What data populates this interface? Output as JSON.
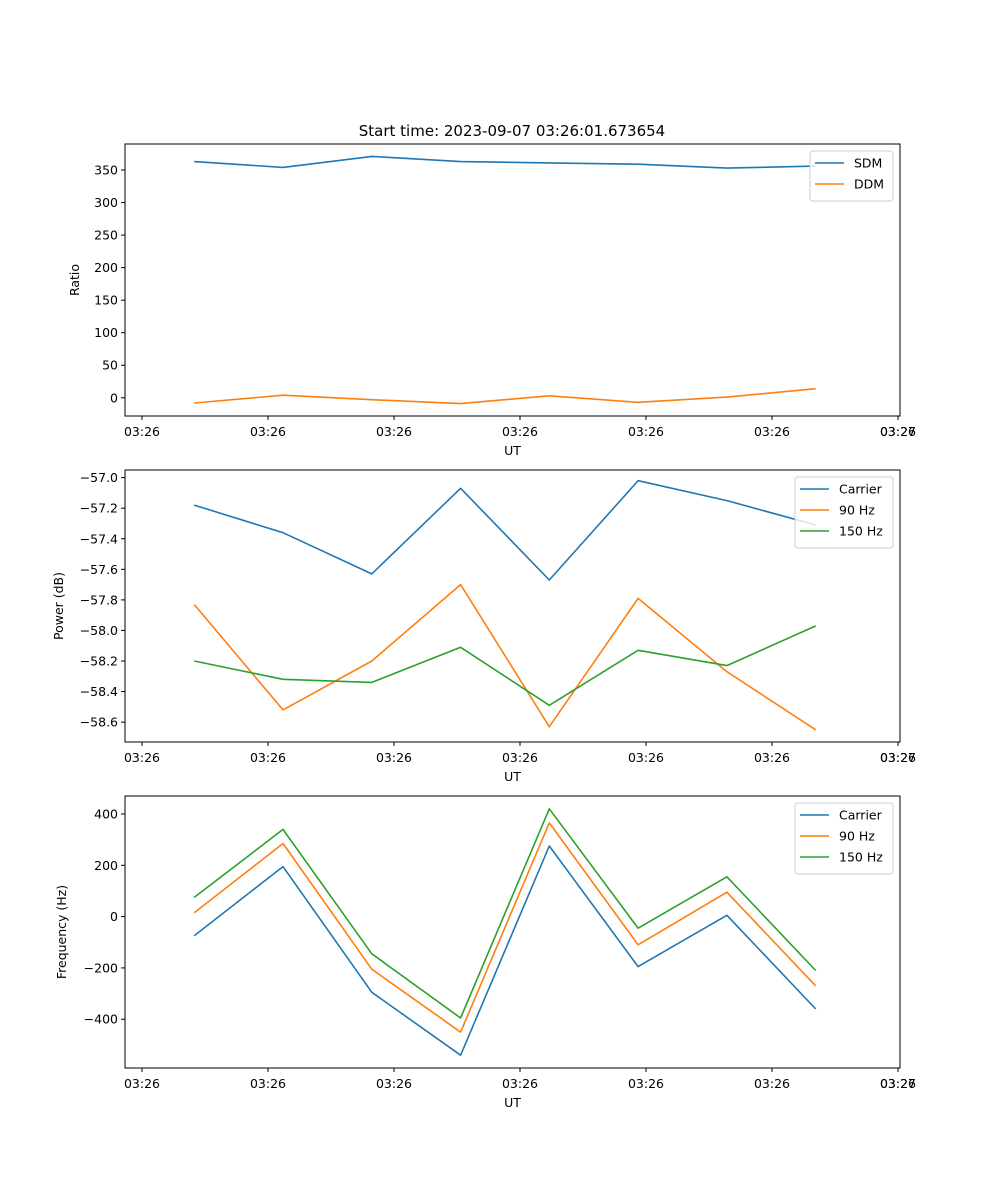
{
  "chart_data": [
    {
      "type": "line",
      "title": "Start time: 2023-09-07 03:26:01.673654",
      "xlabel": "UT",
      "ylabel": "Ratio",
      "x_tick_labels": [
        "03:26",
        "03:26",
        "03:26",
        "03:26",
        "03:26",
        "03:26",
        "03:26",
        "03:27"
      ],
      "y_ticks": [
        0,
        50,
        100,
        150,
        200,
        250,
        300,
        350
      ],
      "ylim": [
        -28,
        390
      ],
      "x": [
        1,
        2,
        3,
        4,
        5,
        6,
        7,
        8
      ],
      "xlim": [
        0.22,
        8.95
      ],
      "legend": "top-right",
      "series": [
        {
          "name": "SDM",
          "color": "#1f77b4",
          "values": [
            363,
            354,
            371,
            363,
            361,
            359,
            353,
            356
          ]
        },
        {
          "name": "DDM",
          "color": "#ff7f0e",
          "values": [
            -8,
            4,
            -3,
            -9,
            3,
            -7,
            1,
            14
          ]
        }
      ]
    },
    {
      "type": "line",
      "title": "",
      "xlabel": "UT",
      "ylabel": "Power (dB)",
      "x_tick_labels": [
        "03:26",
        "03:26",
        "03:26",
        "03:26",
        "03:26",
        "03:26",
        "03:26",
        "03:27"
      ],
      "y_ticks": [
        -57.0,
        -57.2,
        -57.4,
        -57.6,
        -57.8,
        -58.0,
        -58.2,
        -58.4,
        -58.6
      ],
      "y_tick_labels": [
        "−57.0",
        "−57.2",
        "−57.4",
        "−57.6",
        "−57.8",
        "−58.0",
        "−58.2",
        "−58.4",
        "−58.6"
      ],
      "ylim": [
        -58.73,
        -56.95
      ],
      "x": [
        1,
        2,
        3,
        4,
        5,
        6,
        7,
        8
      ],
      "xlim": [
        0.22,
        8.95
      ],
      "legend": "top-right",
      "series": [
        {
          "name": "Carrier",
          "color": "#1f77b4",
          "values": [
            -57.18,
            -57.36,
            -57.63,
            -57.07,
            -57.67,
            -57.02,
            -57.15,
            -57.31
          ]
        },
        {
          "name": "90 Hz",
          "color": "#ff7f0e",
          "values": [
            -57.83,
            -58.52,
            -58.2,
            -57.7,
            -58.63,
            -57.79,
            -58.27,
            -58.65
          ]
        },
        {
          "name": "150 Hz",
          "color": "#2ca02c",
          "values": [
            -58.2,
            -58.32,
            -58.34,
            -58.11,
            -58.49,
            -58.13,
            -58.23,
            -57.97
          ]
        }
      ]
    },
    {
      "type": "line",
      "title": "",
      "xlabel": "UT",
      "ylabel": "Frequency (Hz)",
      "x_tick_labels": [
        "03:26",
        "03:26",
        "03:26",
        "03:26",
        "03:26",
        "03:26",
        "03:26",
        "03:27"
      ],
      "y_ticks": [
        400,
        200,
        0,
        -200,
        -400
      ],
      "y_tick_labels": [
        "400",
        "200",
        "0",
        "−200",
        "−400"
      ],
      "ylim": [
        -590,
        470
      ],
      "x": [
        1,
        2,
        3,
        4,
        5,
        6,
        7,
        8
      ],
      "xlim": [
        0.22,
        8.95
      ],
      "legend": "top-right",
      "series": [
        {
          "name": "Carrier",
          "color": "#1f77b4",
          "values": [
            -75,
            195,
            -295,
            -540,
            275,
            -195,
            5,
            -360
          ]
        },
        {
          "name": "90 Hz",
          "color": "#ff7f0e",
          "values": [
            15,
            285,
            -205,
            -450,
            365,
            -110,
            95,
            -270
          ]
        },
        {
          "name": "150 Hz",
          "color": "#2ca02c",
          "values": [
            75,
            340,
            -145,
            -395,
            420,
            -45,
            155,
            -210
          ]
        }
      ]
    }
  ]
}
